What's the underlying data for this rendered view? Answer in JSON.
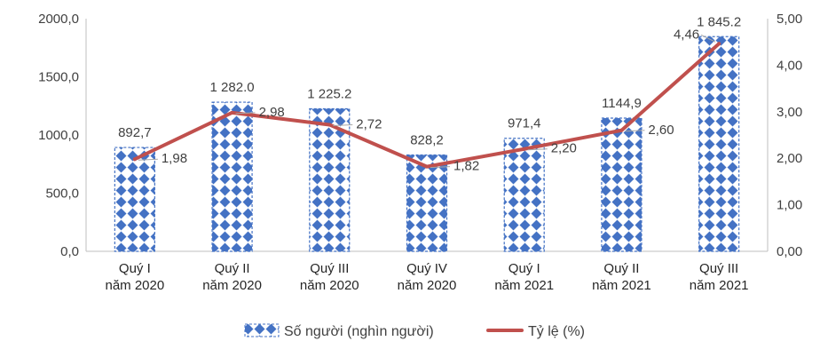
{
  "chart_data": {
    "type": "bar",
    "categories": [
      [
        "Quý I",
        "năm 2020"
      ],
      [
        "Quý II",
        "năm 2020"
      ],
      [
        "Quý III",
        "năm 2020"
      ],
      [
        "Quý IV",
        "năm 2020"
      ],
      [
        "Quý I",
        "năm 2021"
      ],
      [
        "Quý II",
        "năm 2021"
      ],
      [
        "Quý III",
        "năm 2021"
      ]
    ],
    "series": [
      {
        "name": "Số người (nghìn người)",
        "type": "bar",
        "axis": "left",
        "values": [
          892.7,
          1282.0,
          1225.2,
          828.2,
          971.4,
          1144.9,
          1845.2
        ],
        "labels": [
          "892,7",
          "1 282.0",
          "1 225.2",
          "828,2",
          "971,4",
          "1144,9",
          "1 845.2"
        ],
        "color": "#4472C4"
      },
      {
        "name": "Tỷ lệ (%)",
        "type": "line",
        "axis": "right",
        "values": [
          1.98,
          2.98,
          2.72,
          1.82,
          2.2,
          2.6,
          4.46
        ],
        "labels": [
          "1,98",
          "2,98",
          "2,72",
          "1,82",
          "2,20",
          "2,60",
          "4,46"
        ],
        "color": "#C0504D"
      }
    ],
    "y_left": {
      "min": 0,
      "max": 2000,
      "ticks": [
        "0,0",
        "500,0",
        "1000,0",
        "1500,0",
        "2000,0"
      ]
    },
    "y_right": {
      "min": 0,
      "max": 5,
      "ticks": [
        "0,00",
        "1,00",
        "2,00",
        "3,00",
        "4,00",
        "5,00"
      ]
    },
    "grid": false,
    "legend": "bottom"
  }
}
